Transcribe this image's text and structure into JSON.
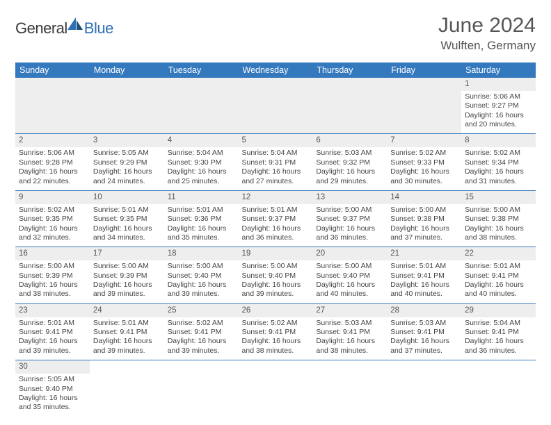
{
  "logo": {
    "general": "General",
    "blue": "Blue"
  },
  "title": "June 2024",
  "location": "Wulften, Germany",
  "colors": {
    "header_bg": "#3478bd",
    "header_fg": "#ffffff",
    "stripe_bg": "#eeeeee",
    "border": "#3478bd",
    "text": "#444444",
    "title_text": "#555555"
  },
  "weekdays": [
    "Sunday",
    "Monday",
    "Tuesday",
    "Wednesday",
    "Thursday",
    "Friday",
    "Saturday"
  ],
  "weeks": [
    [
      null,
      null,
      null,
      null,
      null,
      null,
      {
        "day": "1",
        "sunrise": "Sunrise: 5:06 AM",
        "sunset": "Sunset: 9:27 PM",
        "daylight": "Daylight: 16 hours and 20 minutes."
      }
    ],
    [
      {
        "day": "2",
        "sunrise": "Sunrise: 5:06 AM",
        "sunset": "Sunset: 9:28 PM",
        "daylight": "Daylight: 16 hours and 22 minutes."
      },
      {
        "day": "3",
        "sunrise": "Sunrise: 5:05 AM",
        "sunset": "Sunset: 9:29 PM",
        "daylight": "Daylight: 16 hours and 24 minutes."
      },
      {
        "day": "4",
        "sunrise": "Sunrise: 5:04 AM",
        "sunset": "Sunset: 9:30 PM",
        "daylight": "Daylight: 16 hours and 25 minutes."
      },
      {
        "day": "5",
        "sunrise": "Sunrise: 5:04 AM",
        "sunset": "Sunset: 9:31 PM",
        "daylight": "Daylight: 16 hours and 27 minutes."
      },
      {
        "day": "6",
        "sunrise": "Sunrise: 5:03 AM",
        "sunset": "Sunset: 9:32 PM",
        "daylight": "Daylight: 16 hours and 29 minutes."
      },
      {
        "day": "7",
        "sunrise": "Sunrise: 5:02 AM",
        "sunset": "Sunset: 9:33 PM",
        "daylight": "Daylight: 16 hours and 30 minutes."
      },
      {
        "day": "8",
        "sunrise": "Sunrise: 5:02 AM",
        "sunset": "Sunset: 9:34 PM",
        "daylight": "Daylight: 16 hours and 31 minutes."
      }
    ],
    [
      {
        "day": "9",
        "sunrise": "Sunrise: 5:02 AM",
        "sunset": "Sunset: 9:35 PM",
        "daylight": "Daylight: 16 hours and 32 minutes."
      },
      {
        "day": "10",
        "sunrise": "Sunrise: 5:01 AM",
        "sunset": "Sunset: 9:35 PM",
        "daylight": "Daylight: 16 hours and 34 minutes."
      },
      {
        "day": "11",
        "sunrise": "Sunrise: 5:01 AM",
        "sunset": "Sunset: 9:36 PM",
        "daylight": "Daylight: 16 hours and 35 minutes."
      },
      {
        "day": "12",
        "sunrise": "Sunrise: 5:01 AM",
        "sunset": "Sunset: 9:37 PM",
        "daylight": "Daylight: 16 hours and 36 minutes."
      },
      {
        "day": "13",
        "sunrise": "Sunrise: 5:00 AM",
        "sunset": "Sunset: 9:37 PM",
        "daylight": "Daylight: 16 hours and 36 minutes."
      },
      {
        "day": "14",
        "sunrise": "Sunrise: 5:00 AM",
        "sunset": "Sunset: 9:38 PM",
        "daylight": "Daylight: 16 hours and 37 minutes."
      },
      {
        "day": "15",
        "sunrise": "Sunrise: 5:00 AM",
        "sunset": "Sunset: 9:38 PM",
        "daylight": "Daylight: 16 hours and 38 minutes."
      }
    ],
    [
      {
        "day": "16",
        "sunrise": "Sunrise: 5:00 AM",
        "sunset": "Sunset: 9:39 PM",
        "daylight": "Daylight: 16 hours and 38 minutes."
      },
      {
        "day": "17",
        "sunrise": "Sunrise: 5:00 AM",
        "sunset": "Sunset: 9:39 PM",
        "daylight": "Daylight: 16 hours and 39 minutes."
      },
      {
        "day": "18",
        "sunrise": "Sunrise: 5:00 AM",
        "sunset": "Sunset: 9:40 PM",
        "daylight": "Daylight: 16 hours and 39 minutes."
      },
      {
        "day": "19",
        "sunrise": "Sunrise: 5:00 AM",
        "sunset": "Sunset: 9:40 PM",
        "daylight": "Daylight: 16 hours and 39 minutes."
      },
      {
        "day": "20",
        "sunrise": "Sunrise: 5:00 AM",
        "sunset": "Sunset: 9:40 PM",
        "daylight": "Daylight: 16 hours and 40 minutes."
      },
      {
        "day": "21",
        "sunrise": "Sunrise: 5:01 AM",
        "sunset": "Sunset: 9:41 PM",
        "daylight": "Daylight: 16 hours and 40 minutes."
      },
      {
        "day": "22",
        "sunrise": "Sunrise: 5:01 AM",
        "sunset": "Sunset: 9:41 PM",
        "daylight": "Daylight: 16 hours and 40 minutes."
      }
    ],
    [
      {
        "day": "23",
        "sunrise": "Sunrise: 5:01 AM",
        "sunset": "Sunset: 9:41 PM",
        "daylight": "Daylight: 16 hours and 39 minutes."
      },
      {
        "day": "24",
        "sunrise": "Sunrise: 5:01 AM",
        "sunset": "Sunset: 9:41 PM",
        "daylight": "Daylight: 16 hours and 39 minutes."
      },
      {
        "day": "25",
        "sunrise": "Sunrise: 5:02 AM",
        "sunset": "Sunset: 9:41 PM",
        "daylight": "Daylight: 16 hours and 39 minutes."
      },
      {
        "day": "26",
        "sunrise": "Sunrise: 5:02 AM",
        "sunset": "Sunset: 9:41 PM",
        "daylight": "Daylight: 16 hours and 38 minutes."
      },
      {
        "day": "27",
        "sunrise": "Sunrise: 5:03 AM",
        "sunset": "Sunset: 9:41 PM",
        "daylight": "Daylight: 16 hours and 38 minutes."
      },
      {
        "day": "28",
        "sunrise": "Sunrise: 5:03 AM",
        "sunset": "Sunset: 9:41 PM",
        "daylight": "Daylight: 16 hours and 37 minutes."
      },
      {
        "day": "29",
        "sunrise": "Sunrise: 5:04 AM",
        "sunset": "Sunset: 9:41 PM",
        "daylight": "Daylight: 16 hours and 36 minutes."
      }
    ],
    [
      {
        "day": "30",
        "sunrise": "Sunrise: 5:05 AM",
        "sunset": "Sunset: 9:40 PM",
        "daylight": "Daylight: 16 hours and 35 minutes."
      },
      null,
      null,
      null,
      null,
      null,
      null
    ]
  ]
}
